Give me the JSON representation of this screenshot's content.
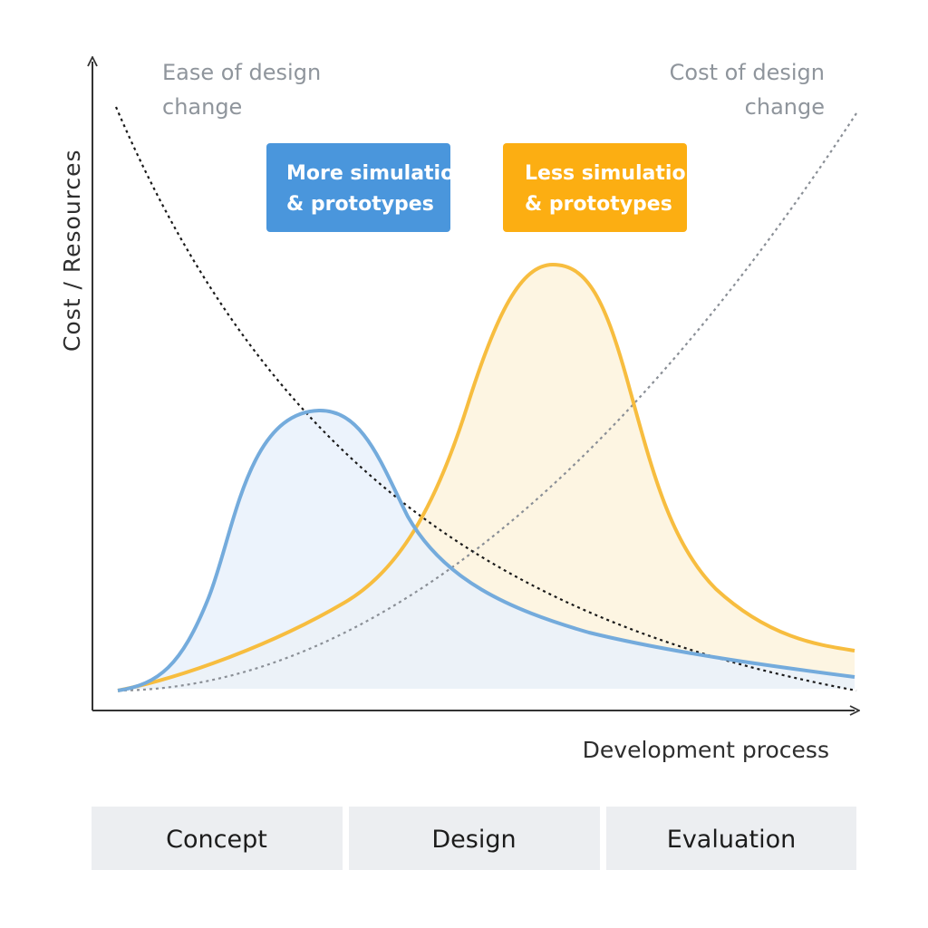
{
  "axes": {
    "y_label": "Cost / Resources",
    "x_label": "Development process"
  },
  "curve_labels": {
    "ease_line1": "Ease of design",
    "ease_line2": "change",
    "cost_line1": "Cost of design",
    "cost_line2": "change"
  },
  "callouts": {
    "more": {
      "line1": "More simulations",
      "line2": "& prototypes",
      "color": "#4a96dc"
    },
    "less": {
      "line1": "Less simulations",
      "line2": "& prototypes",
      "color": "#fcae12"
    }
  },
  "phases": [
    "Concept",
    "Design",
    "Evaluation"
  ],
  "colors": {
    "blue_curve": "#74abdc",
    "blue_fill": "#e9f1fb",
    "orange_curve": "#f7bd3f",
    "orange_fill": "#fdf5e2",
    "ease_line": "#1a1a1a",
    "cost_line": "#8a8f96",
    "phase_bg": "#eceef1"
  }
}
